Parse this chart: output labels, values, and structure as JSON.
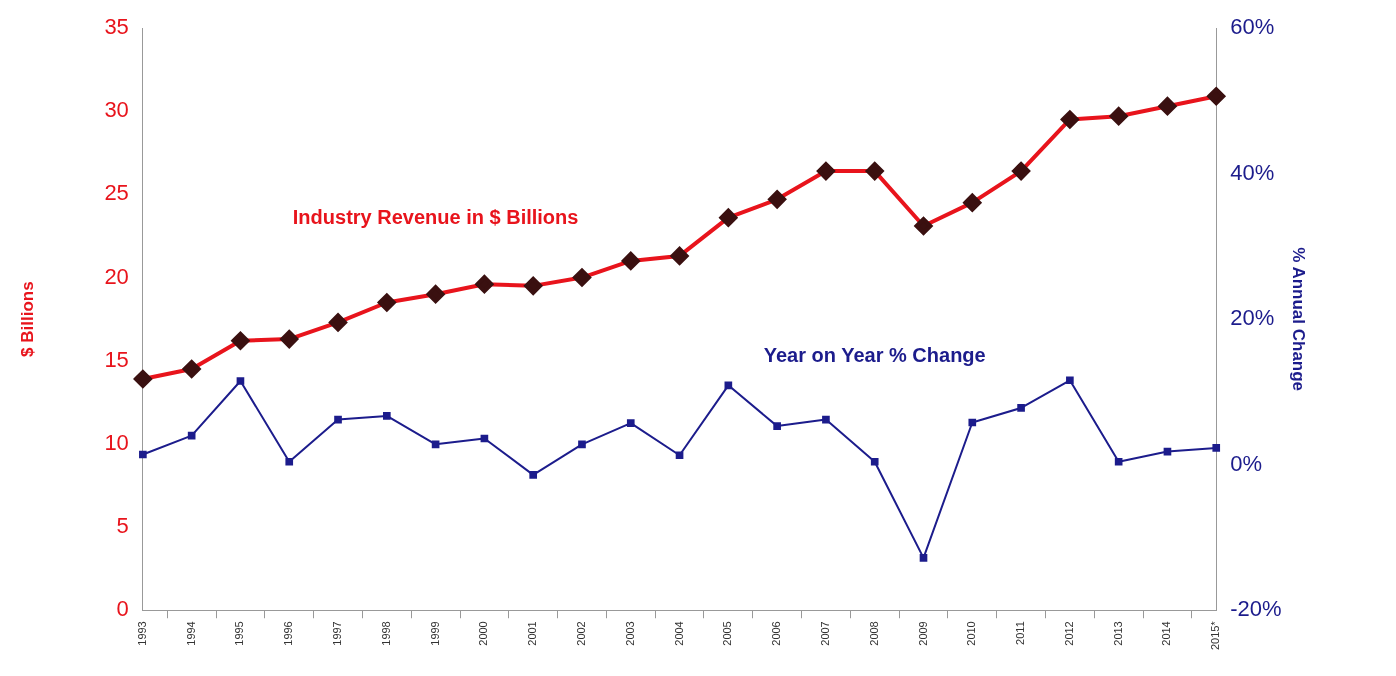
{
  "chart_data": {
    "type": "line",
    "xlabel": null,
    "ylabel": "$ Billions",
    "y2label": "% Annual Change",
    "categories": [
      "1993",
      "1994",
      "1995",
      "1996",
      "1997",
      "1998",
      "1999",
      "2000",
      "2001",
      "2002",
      "2003",
      "2004",
      "2005",
      "2006",
      "2007",
      "2008",
      "2009",
      "2010",
      "2011",
      "2012",
      "2013",
      "2014",
      "2015*"
    ],
    "series": [
      {
        "name": "Industry Revenue in $ Billions",
        "color": "#e8141c",
        "marker": "diamond",
        "values": [
          13.9,
          14.5,
          16.2,
          16.3,
          17.3,
          18.5,
          19.0,
          19.6,
          19.5,
          20.0,
          21.0,
          21.3,
          23.6,
          24.7,
          26.4,
          26.4,
          23.1,
          24.5,
          26.4,
          29.5,
          29.7,
          30.3,
          30.9
        ]
      },
      {
        "name": "Year on Year % Change",
        "color": "#1c1c8c",
        "marker": "square",
        "axis": "y2",
        "values": [
          1.4,
          4.0,
          11.5,
          0.4,
          6.2,
          6.7,
          2.8,
          3.6,
          -1.4,
          2.8,
          5.7,
          1.3,
          10.9,
          5.3,
          6.2,
          0.4,
          -12.8,
          5.8,
          7.8,
          11.6,
          0.4,
          1.8,
          2.3
        ]
      }
    ],
    "ylim": [
      0,
      35
    ],
    "yticks": [
      0,
      5,
      10,
      15,
      20,
      25,
      30,
      35
    ],
    "y2lim": [
      -20,
      60
    ],
    "y2ticks": [
      {
        "value": -20,
        "label": "-20%"
      },
      {
        "value": 0,
        "label": "0%"
      },
      {
        "value": 20,
        "label": "20%"
      },
      {
        "value": 40,
        "label": "40%"
      },
      {
        "value": 60,
        "label": "60%"
      }
    ],
    "grid": false,
    "legend": false,
    "line_style": "solid"
  }
}
